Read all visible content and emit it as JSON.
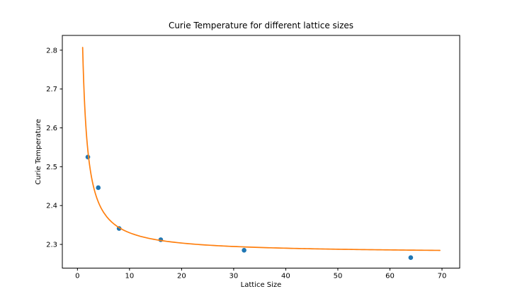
{
  "chart_data": {
    "type": "scatter",
    "title": "Curie Temperature for different lattice sizes",
    "xlabel": "Lattice Size",
    "ylabel": "Curie Temperature",
    "series": [
      {
        "name": "curie-temperature-points",
        "type": "scatter",
        "color": "#1f77b4",
        "marker_radius": 3.3,
        "points": [
          [
            2,
            2.525
          ],
          [
            4,
            2.446
          ],
          [
            8,
            2.341
          ],
          [
            16,
            2.312
          ],
          [
            32,
            2.285
          ],
          [
            64,
            2.266
          ]
        ]
      },
      {
        "name": "fit-curve",
        "type": "line",
        "color": "#ff7f0e",
        "line_width": 1.7,
        "fit": {
          "form": "tc_inf + a / L",
          "tc_inf": 2.277,
          "a": 0.53
        },
        "x_range": [
          1,
          70
        ]
      }
    ],
    "x_ticks": [
      0,
      10,
      20,
      30,
      40,
      50,
      60,
      70
    ],
    "y_ticks": [
      2.3,
      2.4,
      2.5,
      2.6,
      2.7,
      2.8
    ],
    "xlim": [
      -2.9,
      73.4
    ],
    "ylim": [
      2.239,
      2.838
    ],
    "grid": false,
    "background": "#ffffff",
    "axis_color": "#000000"
  }
}
